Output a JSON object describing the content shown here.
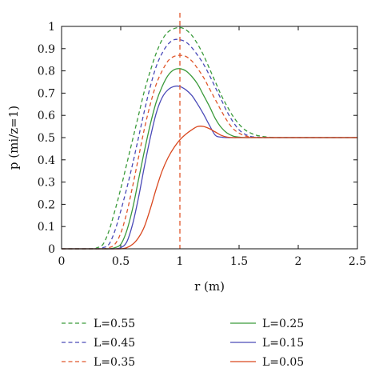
{
  "chart_data": {
    "type": "line",
    "title": "",
    "xlabel": "r (m)",
    "ylabel": "p (mi/z=1)",
    "xlim": [
      0,
      2.5
    ],
    "ylim": [
      0,
      1
    ],
    "xticks": [
      "0",
      "0.5",
      "1",
      "1.5",
      "2",
      "2.5"
    ],
    "yticks": [
      "0",
      "0.1",
      "0.2",
      "0.3",
      "0.4",
      "0.5",
      "0.6",
      "0.7",
      "0.8",
      "0.9",
      "1"
    ],
    "grid": false,
    "legend_position": "bottom",
    "reference_line": {
      "x": 1,
      "style": "dashed",
      "color": "#e0572c"
    },
    "x": [
      0,
      0.25,
      0.3,
      0.35,
      0.4,
      0.45,
      0.5,
      0.55,
      0.6,
      0.65,
      0.7,
      0.75,
      0.8,
      0.85,
      0.9,
      0.95,
      1.0,
      1.05,
      1.1,
      1.15,
      1.2,
      1.25,
      1.3,
      1.35,
      1.4,
      1.45,
      1.5,
      1.55,
      1.6,
      1.65,
      1.7,
      1.75,
      1.8,
      1.9,
      2.0,
      2.5
    ],
    "series": [
      {
        "name": "L=0.55",
        "color": "#3a9a3a",
        "dash": true,
        "values": [
          0,
          0,
          0.005,
          0.02,
          0.08,
          0.17,
          0.27,
          0.38,
          0.49,
          0.6,
          0.71,
          0.8,
          0.88,
          0.94,
          0.975,
          0.99,
          0.995,
          0.985,
          0.96,
          0.92,
          0.87,
          0.81,
          0.75,
          0.69,
          0.64,
          0.595,
          0.56,
          0.535,
          0.52,
          0.51,
          0.505,
          0.502,
          0.5,
          0.5,
          0.5,
          0.5
        ]
      },
      {
        "name": "L=0.45",
        "color": "#4a4ab8",
        "dash": true,
        "values": [
          0,
          0,
          0,
          0.005,
          0.02,
          0.08,
          0.17,
          0.27,
          0.38,
          0.5,
          0.62,
          0.73,
          0.82,
          0.88,
          0.92,
          0.94,
          0.94,
          0.93,
          0.905,
          0.87,
          0.83,
          0.78,
          0.725,
          0.67,
          0.615,
          0.57,
          0.535,
          0.515,
          0.505,
          0.502,
          0.5,
          0.5,
          0.5,
          0.5,
          0.5,
          0.5
        ]
      },
      {
        "name": "L=0.35",
        "color": "#e0572c",
        "dash": true,
        "values": [
          0,
          0,
          0,
          0,
          0.005,
          0.02,
          0.07,
          0.16,
          0.28,
          0.41,
          0.54,
          0.65,
          0.74,
          0.8,
          0.845,
          0.865,
          0.87,
          0.865,
          0.845,
          0.81,
          0.77,
          0.72,
          0.67,
          0.62,
          0.575,
          0.54,
          0.52,
          0.508,
          0.502,
          0.5,
          0.5,
          0.5,
          0.5,
          0.5,
          0.5,
          0.5
        ]
      },
      {
        "name": "L=0.25",
        "color": "#3a9a3a",
        "dash": false,
        "values": [
          0,
          0,
          0,
          0,
          0,
          0.005,
          0.02,
          0.08,
          0.18,
          0.31,
          0.44,
          0.56,
          0.66,
          0.73,
          0.78,
          0.805,
          0.81,
          0.8,
          0.775,
          0.74,
          0.69,
          0.64,
          0.585,
          0.545,
          0.52,
          0.507,
          0.502,
          0.5,
          0.5,
          0.5,
          0.5,
          0.5,
          0.5,
          0.5,
          0.5,
          0.5
        ]
      },
      {
        "name": "L=0.15",
        "color": "#4a4ab8",
        "dash": false,
        "values": [
          0,
          0,
          0,
          0,
          0,
          0,
          0.005,
          0.03,
          0.11,
          0.23,
          0.37,
          0.5,
          0.61,
          0.68,
          0.715,
          0.73,
          0.73,
          0.715,
          0.69,
          0.65,
          0.605,
          0.555,
          0.51,
          0.502,
          0.5,
          0.5,
          0.5,
          0.5,
          0.5,
          0.5,
          0.5,
          0.5,
          0.5,
          0.5,
          0.5,
          0.5
        ]
      },
      {
        "name": "L=0.05",
        "color": "#d9471e",
        "dash": false,
        "values": [
          0,
          0,
          0,
          0,
          0,
          0,
          0,
          0.005,
          0.02,
          0.05,
          0.1,
          0.18,
          0.27,
          0.35,
          0.41,
          0.455,
          0.49,
          0.515,
          0.535,
          0.55,
          0.55,
          0.54,
          0.525,
          0.51,
          0.502,
          0.5,
          0.5,
          0.5,
          0.5,
          0.5,
          0.5,
          0.5,
          0.5,
          0.5,
          0.5,
          0.5
        ]
      }
    ]
  }
}
